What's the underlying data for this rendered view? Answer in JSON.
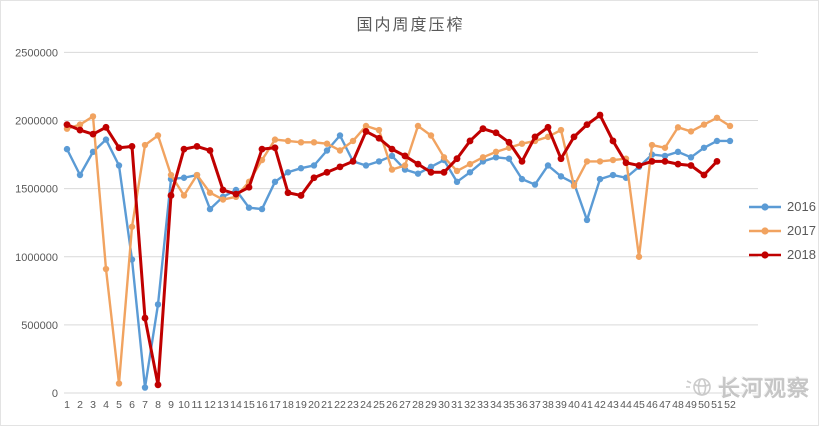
{
  "figure": {
    "title": "国内周度压榨",
    "watermark": "长河观察"
  },
  "legend": {
    "position": "right",
    "items": [
      "2016",
      "2017",
      "2018"
    ]
  },
  "chart_data": {
    "type": "line",
    "title": "国内周度压榨",
    "xlabel": "",
    "ylabel": "",
    "ylim": [
      0,
      2500000
    ],
    "ytick_step": 500000,
    "yticks": [
      "0",
      "500000",
      "1000000",
      "1500000",
      "2000000",
      "2500000"
    ],
    "grid": true,
    "legend_position": "right",
    "x": [
      1,
      2,
      3,
      4,
      5,
      6,
      7,
      8,
      9,
      10,
      11,
      12,
      13,
      14,
      15,
      16,
      17,
      18,
      19,
      20,
      21,
      22,
      23,
      24,
      25,
      26,
      27,
      28,
      29,
      30,
      31,
      32,
      33,
      34,
      35,
      36,
      37,
      38,
      39,
      40,
      41,
      42,
      43,
      44,
      45,
      46,
      47,
      48,
      49,
      50,
      51,
      52
    ],
    "series": [
      {
        "name": "2016",
        "color": "#5B9BD5",
        "values": [
          1790000,
          1600000,
          1770000,
          1860000,
          1670000,
          980000,
          40000,
          650000,
          1570000,
          1580000,
          1600000,
          1350000,
          1440000,
          1490000,
          1360000,
          1350000,
          1550000,
          1620000,
          1650000,
          1670000,
          1780000,
          1890000,
          1700000,
          1670000,
          1700000,
          1740000,
          1640000,
          1610000,
          1660000,
          1710000,
          1550000,
          1620000,
          1700000,
          1730000,
          1720000,
          1570000,
          1530000,
          1670000,
          1590000,
          1540000,
          1270000,
          1570000,
          1600000,
          1580000,
          1660000,
          1750000,
          1740000,
          1770000,
          1730000,
          1800000,
          1850000,
          1850000
        ]
      },
      {
        "name": "2017",
        "color": "#F1A360",
        "values": [
          1940000,
          1970000,
          2030000,
          910000,
          70000,
          1220000,
          1820000,
          1890000,
          1600000,
          1450000,
          1600000,
          1470000,
          1420000,
          1440000,
          1550000,
          1710000,
          1860000,
          1850000,
          1840000,
          1840000,
          1830000,
          1780000,
          1850000,
          1960000,
          1930000,
          1640000,
          1670000,
          1960000,
          1890000,
          1730000,
          1630000,
          1680000,
          1730000,
          1770000,
          1800000,
          1830000,
          1850000,
          1880000,
          1930000,
          1520000,
          1700000,
          1700000,
          1710000,
          1720000,
          1000000,
          1820000,
          1800000,
          1950000,
          1920000,
          1970000,
          2020000,
          1960000
        ]
      },
      {
        "name": "2018",
        "color": "#C00000",
        "values": [
          1970000,
          1930000,
          1900000,
          1950000,
          1800000,
          1810000,
          550000,
          60000,
          1450000,
          1790000,
          1810000,
          1780000,
          1490000,
          1460000,
          1510000,
          1790000,
          1800000,
          1470000,
          1450000,
          1580000,
          1620000,
          1660000,
          1700000,
          1920000,
          1870000,
          1790000,
          1740000,
          1680000,
          1620000,
          1620000,
          1720000,
          1850000,
          1940000,
          1910000,
          1840000,
          1700000,
          1880000,
          1950000,
          1720000,
          1880000,
          1970000,
          2040000,
          1850000,
          1690000,
          1670000,
          1700000,
          1700000,
          1680000,
          1670000,
          1600000,
          1700000,
          null
        ]
      }
    ]
  },
  "colors": {
    "gridline": "#D9D9D9",
    "axis_text": "#595959",
    "title_text": "#595959",
    "watermark": "#BDBDBD"
  }
}
